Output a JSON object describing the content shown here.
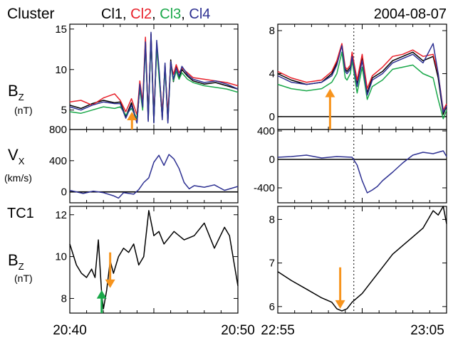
{
  "header": {
    "mission": "Cluster",
    "date": "2004-08-07",
    "spacecraft": [
      {
        "name": "Cl1",
        "color": "#000000"
      },
      {
        "name": "Cl2",
        "color": "#e8202a"
      },
      {
        "name": "Cl3",
        "color": "#1aa84a"
      },
      {
        "name": "Cl4",
        "color": "#2e3192"
      }
    ],
    "separator": ", "
  },
  "labels": {
    "bz_main": "B",
    "bz_sub": "Z",
    "bz_unit": "(nT)",
    "vx_main": "V",
    "vx_sub": "X",
    "vx_unit": "(km/s)",
    "tc1": "TC1",
    "tc_bz_main": "B",
    "tc_bz_sub": "Z",
    "tc_bz_unit": "(nT)"
  },
  "colors": {
    "arrow_orange": "#f7941d",
    "arrow_green": "#1aa84a",
    "vx_line": "#2e3192",
    "tc1_line": "#000000"
  },
  "chart_data": [
    {
      "id": "cluster-bz-left",
      "type": "line",
      "ylabel": "BZ (nT)",
      "xlim": [
        20.6667,
        20.8333
      ],
      "ylim": [
        2.6,
        15.6
      ],
      "yticks": [
        5,
        10,
        15
      ],
      "reference_line": null,
      "series": [
        {
          "name": "Cl1",
          "x": [
            20.6667,
            20.6778,
            20.6889,
            20.7,
            20.7111,
            20.7167,
            20.7222,
            20.7278,
            20.7333,
            20.7361,
            20.7389,
            20.7417,
            20.7444,
            20.7472,
            20.75,
            20.7528,
            20.7556,
            20.7583,
            20.7611,
            20.7639,
            20.7667,
            20.7694,
            20.7722,
            20.775,
            20.7778,
            20.7833,
            20.7889,
            20.8,
            20.8111,
            20.8222,
            20.8333
          ],
          "y": [
            5.6,
            5.2,
            5.8,
            6.2,
            5.9,
            6.0,
            4.2,
            5.9,
            3.5,
            8.0,
            5.2,
            13.6,
            3.8,
            14.4,
            3.5,
            13.2,
            8.8,
            4.0,
            10.6,
            3.6,
            11.2,
            8.5,
            10.4,
            9.0,
            10.0,
            9.2,
            8.6,
            8.2,
            8.4,
            8.0,
            7.6
          ]
        },
        {
          "name": "Cl2",
          "x": [
            20.6667,
            20.6778,
            20.6889,
            20.7,
            20.7111,
            20.7167,
            20.7222,
            20.7278,
            20.7333,
            20.7361,
            20.7389,
            20.7417,
            20.7444,
            20.7472,
            20.75,
            20.7528,
            20.7556,
            20.7583,
            20.7611,
            20.7639,
            20.7667,
            20.7694,
            20.7722,
            20.775,
            20.7778,
            20.7833,
            20.7889,
            20.8,
            20.8111,
            20.8222,
            20.8333
          ],
          "y": [
            6.0,
            6.2,
            5.6,
            6.5,
            7.0,
            6.2,
            4.8,
            6.4,
            4.4,
            8.6,
            6.0,
            14.0,
            4.2,
            14.2,
            4.4,
            12.6,
            9.0,
            4.8,
            10.2,
            4.6,
            10.8,
            9.4,
            10.6,
            9.6,
            10.2,
            9.6,
            9.0,
            8.8,
            8.6,
            8.4,
            8.0
          ]
        },
        {
          "name": "Cl3",
          "x": [
            20.6667,
            20.6778,
            20.6889,
            20.7,
            20.7111,
            20.7167,
            20.7222,
            20.7278,
            20.7333,
            20.7361,
            20.7389,
            20.7417,
            20.7444,
            20.7472,
            20.75,
            20.7528,
            20.7556,
            20.7583,
            20.7611,
            20.7639,
            20.7667,
            20.7694,
            20.7722,
            20.775,
            20.7778,
            20.7833,
            20.7889,
            20.8,
            20.8111,
            20.8222,
            20.8333
          ],
          "y": [
            4.8,
            4.6,
            5.0,
            5.4,
            5.2,
            5.4,
            4.4,
            5.2,
            4.0,
            7.6,
            5.0,
            13.0,
            4.0,
            13.8,
            3.6,
            12.8,
            8.4,
            4.2,
            10.0,
            3.8,
            10.6,
            8.6,
            9.8,
            8.8,
            9.6,
            8.8,
            8.4,
            8.0,
            7.8,
            7.6,
            7.2
          ]
        },
        {
          "name": "Cl4",
          "x": [
            20.6667,
            20.6778,
            20.6889,
            20.7,
            20.7111,
            20.7167,
            20.7222,
            20.7278,
            20.7333,
            20.7361,
            20.7389,
            20.7417,
            20.7444,
            20.7472,
            20.75,
            20.7528,
            20.7556,
            20.7583,
            20.7611,
            20.7639,
            20.7667,
            20.7694,
            20.7722,
            20.775,
            20.7778,
            20.7833,
            20.7889,
            20.8,
            20.8111,
            20.8222,
            20.8333
          ],
          "y": [
            5.4,
            5.0,
            5.6,
            6.0,
            5.8,
            5.8,
            4.0,
            5.6,
            3.4,
            8.2,
            5.4,
            13.4,
            3.6,
            14.6,
            3.4,
            13.6,
            9.4,
            3.8,
            10.8,
            3.4,
            11.0,
            8.8,
            10.2,
            9.2,
            10.4,
            9.4,
            8.8,
            8.4,
            8.6,
            8.2,
            7.6
          ]
        }
      ]
    },
    {
      "id": "cluster-bz-right",
      "type": "line",
      "ylabel": "BZ (nT)",
      "xlim": [
        22.9167,
        23.0833
      ],
      "ylim": [
        -1.2,
        8.6
      ],
      "yticks": [
        0,
        4,
        8
      ],
      "reference_line": 0,
      "series": [
        {
          "name": "Cl1",
          "x": [
            22.9167,
            22.93,
            22.945,
            22.96,
            22.97,
            22.975,
            22.98,
            22.9833,
            22.985,
            22.9883,
            22.99,
            22.995,
            23.0,
            23.005,
            23.01,
            23.02,
            23.03,
            23.04,
            23.05,
            23.06,
            23.07,
            23.075,
            23.08,
            23.0833
          ],
          "y": [
            4.0,
            3.4,
            3.0,
            3.2,
            4.0,
            5.0,
            6.7,
            4.4,
            4.2,
            4.6,
            5.8,
            3.0,
            5.4,
            2.2,
            3.6,
            4.2,
            5.2,
            5.6,
            6.0,
            5.2,
            5.6,
            3.6,
            0.2,
            1.0
          ]
        },
        {
          "name": "Cl2",
          "x": [
            22.9167,
            22.93,
            22.945,
            22.96,
            22.97,
            22.975,
            22.98,
            22.9833,
            22.985,
            22.9883,
            22.99,
            22.995,
            23.0,
            23.005,
            23.01,
            23.02,
            23.03,
            23.04,
            23.05,
            23.06,
            23.07,
            23.075,
            23.08,
            23.0833
          ],
          "y": [
            4.2,
            3.6,
            3.2,
            3.4,
            4.2,
            5.2,
            6.8,
            4.6,
            4.4,
            4.8,
            6.0,
            3.4,
            5.8,
            2.6,
            3.8,
            4.6,
            5.6,
            5.8,
            6.2,
            5.6,
            5.8,
            4.0,
            0.6,
            1.2
          ]
        },
        {
          "name": "Cl3",
          "x": [
            22.9167,
            22.93,
            22.945,
            22.96,
            22.97,
            22.975,
            22.98,
            22.9833,
            22.985,
            22.9883,
            22.99,
            22.995,
            23.0,
            23.005,
            23.01,
            23.02,
            23.03,
            23.04,
            23.05,
            23.06,
            23.07,
            23.075,
            23.08,
            23.0833
          ],
          "y": [
            3.0,
            2.6,
            2.4,
            2.6,
            3.2,
            4.0,
            6.0,
            3.6,
            3.4,
            4.0,
            5.2,
            2.2,
            4.6,
            1.6,
            2.8,
            3.4,
            4.4,
            4.6,
            4.8,
            4.0,
            3.6,
            1.6,
            -0.2,
            0.6
          ]
        },
        {
          "name": "Cl4",
          "x": [
            22.9167,
            22.93,
            22.945,
            22.96,
            22.97,
            22.975,
            22.98,
            22.9833,
            22.985,
            22.9883,
            22.99,
            22.995,
            23.0,
            23.005,
            23.01,
            23.02,
            23.03,
            23.04,
            23.05,
            23.06,
            23.07,
            23.075,
            23.08,
            23.0833
          ],
          "y": [
            3.8,
            3.2,
            3.0,
            3.2,
            3.8,
            4.8,
            6.6,
            4.2,
            4.0,
            4.4,
            5.6,
            2.8,
            5.2,
            2.0,
            3.4,
            4.0,
            5.0,
            5.4,
            5.8,
            5.0,
            6.8,
            4.0,
            0.4,
            1.0
          ]
        }
      ],
      "dotted_marker_x": 22.9917
    },
    {
      "id": "cluster-vx-left",
      "type": "line",
      "ylabel": "VX (km/s)",
      "xlim": [
        20.6667,
        20.8333
      ],
      "ylim": [
        -140,
        800
      ],
      "yticks": [
        0,
        400,
        800
      ],
      "reference_line": 0,
      "series": [
        {
          "name": "Cl4",
          "x": [
            20.6667,
            20.68,
            20.69,
            20.7,
            20.71,
            20.715,
            20.72,
            20.73,
            20.735,
            20.74,
            20.745,
            20.75,
            20.755,
            20.76,
            20.765,
            20.77,
            20.775,
            20.78,
            20.785,
            20.79,
            20.8,
            20.81,
            20.82,
            20.8333
          ],
          "y": [
            20,
            -20,
            10,
            -10,
            -50,
            -80,
            -10,
            -30,
            30,
            120,
            180,
            380,
            470,
            340,
            480,
            420,
            300,
            120,
            40,
            80,
            60,
            90,
            20,
            70
          ]
        }
      ]
    },
    {
      "id": "cluster-vx-right",
      "type": "line",
      "ylabel": "VX (km/s)",
      "xlim": [
        22.9167,
        23.0833
      ],
      "ylim": [
        -610,
        420
      ],
      "yticks": [
        -400,
        0,
        400
      ],
      "reference_line": 0,
      "series": [
        {
          "name": "Cl4",
          "x": [
            22.9167,
            22.93,
            22.945,
            22.96,
            22.975,
            22.99,
            22.995,
            23.0,
            23.005,
            23.01,
            23.015,
            23.02,
            23.03,
            23.04,
            23.05,
            23.06,
            23.07,
            23.08,
            23.0833
          ],
          "y": [
            30,
            40,
            60,
            20,
            40,
            30,
            -80,
            -300,
            -470,
            -430,
            -380,
            -300,
            -180,
            -50,
            60,
            100,
            80,
            120,
            40
          ]
        }
      ],
      "dotted_marker_x": 22.9917
    },
    {
      "id": "tc1-bz-left",
      "type": "line",
      "ylabel": "BZ (nT)",
      "xlim": [
        20.6667,
        20.8333
      ],
      "ylim": [
        7.3,
        12.4
      ],
      "yticks": [
        8,
        10,
        12
      ],
      "series": [
        {
          "name": "TC1",
          "x": [
            20.6667,
            20.6733,
            20.6783,
            20.6833,
            20.6883,
            20.6917,
            20.695,
            20.6983,
            20.7,
            20.7033,
            20.7067,
            20.71,
            20.715,
            20.72,
            20.725,
            20.73,
            20.735,
            20.74,
            20.745,
            20.75,
            20.755,
            20.76,
            20.77,
            20.78,
            20.79,
            20.8,
            20.81,
            20.82,
            20.825,
            20.8333
          ],
          "y": [
            10.6,
            9.6,
            9.2,
            9.0,
            9.4,
            9.0,
            10.8,
            8.2,
            7.5,
            8.4,
            9.8,
            9.2,
            10.0,
            10.4,
            10.2,
            10.6,
            9.6,
            10.0,
            12.2,
            11.0,
            11.2,
            10.6,
            11.2,
            10.8,
            11.0,
            11.6,
            10.4,
            11.4,
            11.0,
            8.6
          ]
        }
      ]
    },
    {
      "id": "tc1-bz-right",
      "type": "line",
      "ylabel": "BZ (nT)",
      "xlim": [
        22.9167,
        23.0833
      ],
      "ylim": [
        5.85,
        8.3
      ],
      "yticks": [
        6,
        7,
        8
      ],
      "series": [
        {
          "name": "TC1",
          "x": [
            22.9167,
            22.93,
            22.945,
            22.96,
            22.97,
            22.975,
            22.98,
            22.985,
            22.99,
            23.0,
            23.01,
            23.02,
            23.03,
            23.04,
            23.05,
            23.06,
            23.065,
            23.07,
            23.075,
            23.08,
            23.0833
          ],
          "y": [
            6.8,
            6.6,
            6.4,
            6.2,
            6.1,
            5.95,
            5.9,
            5.95,
            6.1,
            6.3,
            6.6,
            6.9,
            7.2,
            7.4,
            7.6,
            7.8,
            8.0,
            8.2,
            8.1,
            8.3,
            7.9
          ]
        }
      ],
      "dotted_marker_x": 22.9917
    }
  ],
  "x_axes": {
    "left": {
      "ticks": [
        {
          "value": 20.6667,
          "label": "20:40"
        },
        {
          "value": 20.8333,
          "label": "20:50"
        }
      ]
    },
    "right": {
      "ticks": [
        {
          "value": 22.9167,
          "label": "22:55"
        },
        {
          "value": 23.0833,
          "label": "23:05"
        }
      ]
    }
  },
  "arrows": [
    {
      "panel": "cluster-bz-left",
      "x": 20.7283,
      "y_from": 2.6,
      "y_to": 4.8,
      "color": "orange"
    },
    {
      "panel": "cluster-bz-right",
      "x": 22.9683,
      "y_from": -1.2,
      "y_to": 2.6,
      "color": "orange"
    },
    {
      "panel": "tc1-bz-left",
      "x": 20.7067,
      "y_from": 10.2,
      "y_to": 8.5,
      "color": "orange"
    },
    {
      "panel": "tc1-bz-left",
      "x": 20.6983,
      "y_from": 7.3,
      "y_to": 8.4,
      "color": "green"
    },
    {
      "panel": "tc1-bz-right",
      "x": 22.9783,
      "y_from": 6.9,
      "y_to": 5.95,
      "color": "orange"
    }
  ]
}
